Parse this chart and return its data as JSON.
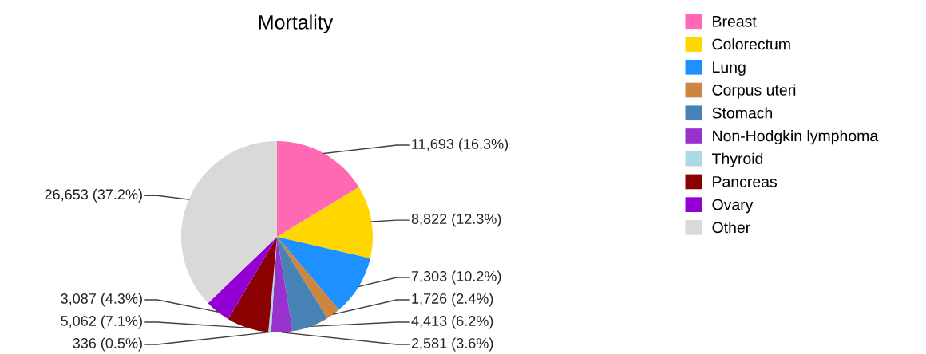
{
  "chart_data": {
    "type": "pie",
    "title": "Mortality",
    "categories": [
      "Breast",
      "Colorectum",
      "Lung",
      "Corpus uteri",
      "Stomach",
      "Non-Hodgkin lymphoma",
      "Thyroid",
      "Pancreas",
      "Ovary",
      "Other"
    ],
    "values": [
      11693,
      8822,
      7303,
      1726,
      4413,
      2581,
      336,
      5062,
      3087,
      26653
    ],
    "value_labels": [
      "11,693 (16.3%)",
      "8,822 (12.3%)",
      "7,303 (10.2%)",
      "1,726 (2.4%)",
      "4,413 (6.2%)",
      "2,581 (3.6%)",
      "336 (0.5%)",
      "5,062 (7.1%)",
      "3,087 (4.3%)",
      "26,653 (37.2%)"
    ],
    "colors": [
      "#ff69b4",
      "#ffd700",
      "#1e90ff",
      "#cd853f",
      "#4682b4",
      "#9932cc",
      "#add8e6",
      "#8b0000",
      "#9400d3",
      "#d9d9d9"
    ],
    "legend": "top right"
  }
}
